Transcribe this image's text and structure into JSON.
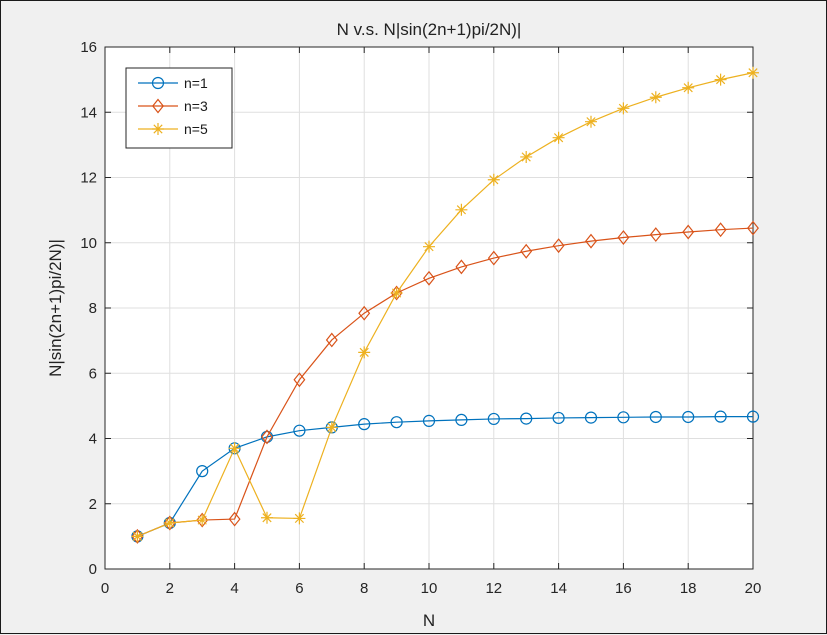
{
  "chart_data": {
    "type": "line",
    "title": "N v.s. N|sin(2n+1)pi/2N)|",
    "xlabel": "N",
    "ylabel": "N|sin(2n+1)pi/2N)|",
    "xlim": [
      0,
      20
    ],
    "ylim": [
      0,
      16
    ],
    "xticks": [
      0,
      2,
      4,
      6,
      8,
      10,
      12,
      14,
      16,
      18,
      20
    ],
    "yticks": [
      0,
      2,
      4,
      6,
      8,
      10,
      12,
      14,
      16
    ],
    "grid": true,
    "legend_position": "top-left",
    "x": [
      1,
      2,
      3,
      4,
      5,
      6,
      7,
      8,
      9,
      10,
      11,
      12,
      13,
      14,
      15,
      16,
      17,
      18,
      19,
      20
    ],
    "series": [
      {
        "name": "n=1",
        "color": "#0072bd",
        "marker": "circle",
        "values": [
          1.0,
          1.41,
          3.0,
          3.7,
          4.05,
          4.24,
          4.34,
          4.44,
          4.5,
          4.54,
          4.57,
          4.6,
          4.61,
          4.63,
          4.64,
          4.65,
          4.66,
          4.66,
          4.67,
          4.67
        ]
      },
      {
        "name": "n=3",
        "color": "#d95319",
        "marker": "diamond",
        "values": [
          1.0,
          1.41,
          1.5,
          1.53,
          4.05,
          5.8,
          7.02,
          7.84,
          8.46,
          8.91,
          9.26,
          9.53,
          9.74,
          9.91,
          10.05,
          10.16,
          10.25,
          10.33,
          10.4,
          10.45
        ]
      },
      {
        "name": "n=5",
        "color": "#edb120",
        "marker": "star",
        "values": [
          1.0,
          1.41,
          1.5,
          3.7,
          1.57,
          1.55,
          4.34,
          6.64,
          8.46,
          9.88,
          11.01,
          11.93,
          12.63,
          13.22,
          13.71,
          14.12,
          14.46,
          14.75,
          15.0,
          15.21
        ]
      }
    ]
  }
}
